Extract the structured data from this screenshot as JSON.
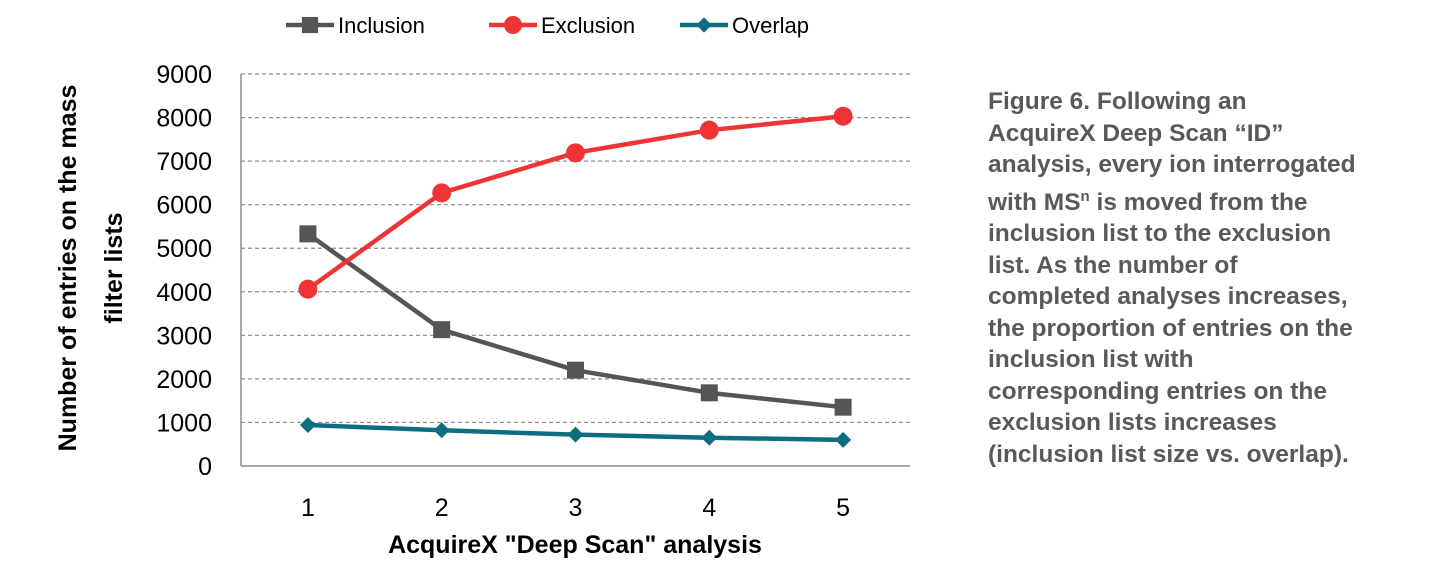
{
  "chart_data": {
    "type": "line",
    "title": "",
    "xlabel": "AcquireX \"Deep Scan\" analysis",
    "ylabel_lines": [
      "Number of entries on the mass",
      "filter lists"
    ],
    "categories": [
      "1",
      "2",
      "3",
      "4",
      "5"
    ],
    "ylim": [
      0,
      9000
    ],
    "yticks": [
      "0",
      "1000",
      "2000",
      "3000",
      "4000",
      "5000",
      "6000",
      "7000",
      "8000",
      "9000"
    ],
    "grid": "horizontal dashed",
    "legend_position": "top",
    "series": [
      {
        "name": "Inclusion",
        "values": [
          5330,
          3130,
          2200,
          1680,
          1350
        ],
        "color": "#555555",
        "marker": "square"
      },
      {
        "name": "Exclusion",
        "values": [
          4060,
          6270,
          7190,
          7710,
          8030
        ],
        "color": "#ee3434",
        "marker": "circle"
      },
      {
        "name": "Overlap",
        "values": [
          940,
          820,
          720,
          650,
          600
        ],
        "color": "#0e6d80",
        "marker": "diamond"
      }
    ]
  },
  "caption": {
    "line1": "Figure 6.  Following an",
    "line2": "AcquireX Deep Scan “ID”",
    "line3": "analysis, every ion interrogated",
    "line4_pre": "with MS",
    "line4_sup": "n",
    "line4_post": " is moved from the",
    "line5": "inclusion list to the exclusion",
    "line6": "list.  As the number of",
    "line7": "completed analyses increases,",
    "line8": "the proportion of entries on the",
    "line9": "inclusion list with",
    "line10": "corresponding entries on the",
    "line11": "exclusion lists increases",
    "line12": "(inclusion list size vs. overlap)."
  }
}
